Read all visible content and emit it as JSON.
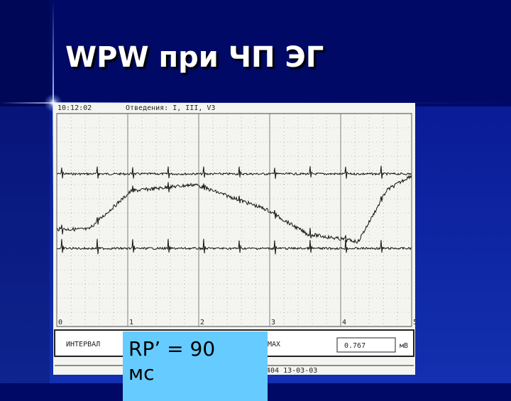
{
  "title": "WPW при ЧП ЭГ",
  "ecg": {
    "header": "10:12:02",
    "leads_label": "Отведения: I, III, V3",
    "x_axis": [
      0,
      1,
      2,
      3,
      4,
      5
    ],
    "footer": {
      "interval_label": "ИНТЕРВАЛ",
      "max_label": "MAX",
      "max_value": "0.767",
      "unit": "мВ",
      "record": "404  13-03-03"
    }
  },
  "callout": "RP’ = 90 мс"
}
